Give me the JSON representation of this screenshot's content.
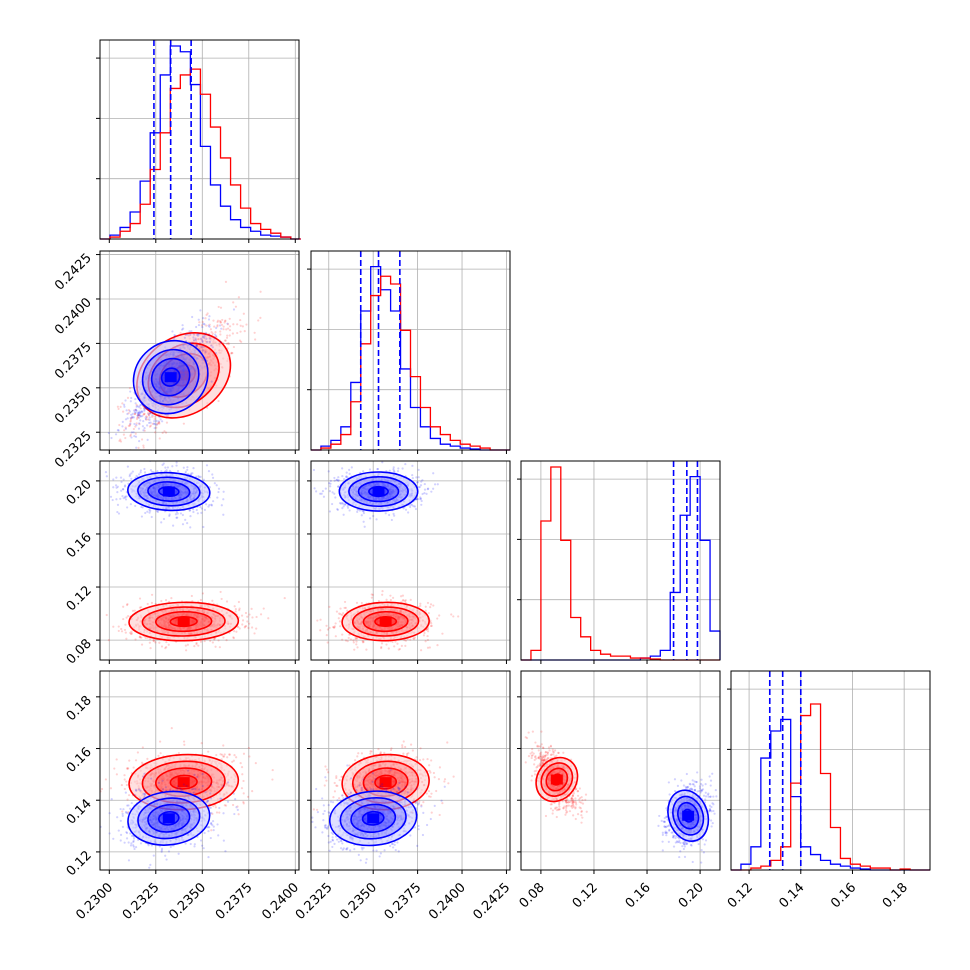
{
  "chart_data": {
    "type": "corner",
    "description_series": [
      {
        "name": "",
        "color": "#0000ff"
      },
      {
        "name": "",
        "color": "#ff0000"
      }
    ],
    "colors": {
      "blue": "#0000ff",
      "red": "#ff0000"
    },
    "grid": true,
    "parameters": [
      {
        "index": 0,
        "range": [
          0.2295,
          0.2402
        ],
        "ticks": [
          "0.2300",
          "0.2325",
          "0.2350",
          "0.2375",
          "0.2400"
        ],
        "tick_values": [
          0.23,
          0.2325,
          0.235,
          0.2375,
          0.24
        ],
        "quantiles": [
          0.2324,
          0.2333,
          0.2344
        ],
        "blue_hist": {
          "edges_start": 0.2295,
          "edges_step": 0.00054,
          "values": [
            0.0,
            0.02,
            0.06,
            0.14,
            0.3,
            0.55,
            0.85,
            1.0,
            0.97,
            0.8,
            0.48,
            0.28,
            0.17,
            0.1,
            0.06,
            0.04,
            0.02,
            0.015,
            0.01,
            0.0
          ]
        },
        "red_hist": {
          "edges_start": 0.2295,
          "edges_step": 0.00054,
          "values": [
            0.0,
            0.01,
            0.04,
            0.08,
            0.18,
            0.36,
            0.55,
            0.78,
            0.85,
            0.88,
            0.75,
            0.58,
            0.42,
            0.28,
            0.16,
            0.08,
            0.05,
            0.03,
            0.01,
            0.0
          ]
        }
      },
      {
        "index": 1,
        "range": [
          0.2315,
          0.2427
        ],
        "ticks": [
          "0.2325",
          "0.2350",
          "0.2375",
          "0.2400",
          "0.2425"
        ],
        "tick_values": [
          0.2325,
          0.235,
          0.2375,
          0.24,
          0.2425
        ],
        "quantiles": [
          0.2343,
          0.2353,
          0.2365
        ],
        "blue_hist": {
          "edges_start": 0.2315,
          "edges_step": 0.00056,
          "values": [
            0.0,
            0.02,
            0.05,
            0.12,
            0.35,
            0.72,
            0.95,
            0.83,
            0.72,
            0.42,
            0.22,
            0.12,
            0.06,
            0.03,
            0.02,
            0.01,
            0.005,
            0.0,
            0.0,
            0.0
          ]
        },
        "red_hist": {
          "edges_start": 0.2315,
          "edges_step": 0.00056,
          "values": [
            0.0,
            0.01,
            0.03,
            0.08,
            0.25,
            0.55,
            0.8,
            0.9,
            0.86,
            0.62,
            0.38,
            0.22,
            0.12,
            0.08,
            0.05,
            0.03,
            0.02,
            0.01,
            0.0,
            0.0
          ]
        }
      },
      {
        "index": 2,
        "range": [
          0.065,
          0.215
        ],
        "ticks": [
          "0.08",
          "0.12",
          "0.16",
          "0.20"
        ],
        "tick_values": [
          0.08,
          0.12,
          0.16,
          0.2
        ],
        "quantiles": [
          0.18,
          0.19,
          0.198
        ],
        "blue_hist": {
          "edges_start": 0.065,
          "edges_step": 0.0075,
          "values": [
            0,
            0,
            0,
            0,
            0,
            0,
            0,
            0,
            0,
            0,
            0,
            0,
            0.01,
            0.02,
            0.05,
            0.35,
            0.75,
            0.95,
            0.62,
            0.15
          ]
        },
        "red_hist": {
          "edges_start": 0.065,
          "edges_step": 0.0075,
          "values": [
            0.0,
            0.05,
            0.72,
            1.0,
            0.62,
            0.22,
            0.12,
            0.05,
            0.03,
            0.02,
            0.02,
            0.01,
            0.01,
            0.005,
            0,
            0,
            0,
            0,
            0,
            0
          ]
        }
      },
      {
        "index": 3,
        "range": [
          0.113,
          0.19
        ],
        "ticks": [
          "0.12",
          "0.14",
          "0.16",
          "0.18"
        ],
        "tick_values": [
          0.12,
          0.14,
          0.16,
          0.18
        ],
        "quantiles": [
          0.128,
          0.133,
          0.14
        ],
        "blue_hist": {
          "edges_start": 0.113,
          "edges_step": 0.00385,
          "values": [
            0.0,
            0.03,
            0.12,
            0.58,
            0.72,
            0.78,
            0.38,
            0.12,
            0.08,
            0.05,
            0.03,
            0.02,
            0.01,
            0.005,
            0,
            0,
            0,
            0,
            0,
            0
          ]
        },
        "red_hist": {
          "edges_start": 0.113,
          "edges_step": 0.00385,
          "values": [
            0.0,
            0.0,
            0.01,
            0.02,
            0.05,
            0.12,
            0.45,
            0.8,
            0.86,
            0.5,
            0.22,
            0.06,
            0.03,
            0.02,
            0.01,
            0.01,
            0.0,
            0.005,
            0,
            0
          ]
        }
      }
    ],
    "two_d": [
      {
        "row": 1,
        "col": 0,
        "blue": {
          "mean": [
            0.2333,
            0.2356
          ],
          "sd": [
            0.00085,
            0.0011
          ],
          "corr": 0.78
        },
        "red": {
          "mean": [
            0.234,
            0.2357
          ],
          "sd": [
            0.0011,
            0.0012
          ],
          "corr": 0.75
        }
      },
      {
        "row": 2,
        "col": 0,
        "blue": {
          "mean": [
            0.2332,
            0.192
          ],
          "sd": [
            0.0009,
            0.006
          ],
          "corr": -0.1
        },
        "red": {
          "mean": [
            0.234,
            0.094
          ],
          "sd": [
            0.0012,
            0.006
          ],
          "corr": 0.05
        }
      },
      {
        "row": 2,
        "col": 1,
        "blue": {
          "mean": [
            0.2353,
            0.192
          ],
          "sd": [
            0.0009,
            0.006
          ],
          "corr": 0.0
        },
        "red": {
          "mean": [
            0.2357,
            0.094
          ],
          "sd": [
            0.001,
            0.006
          ],
          "corr": 0.05
        }
      },
      {
        "row": 3,
        "col": 0,
        "blue": {
          "mean": [
            0.2332,
            0.133
          ],
          "sd": [
            0.0009,
            0.0045
          ],
          "corr": 0.2
        },
        "red": {
          "mean": [
            0.234,
            0.147
          ],
          "sd": [
            0.0012,
            0.0045
          ],
          "corr": 0.1
        }
      },
      {
        "row": 3,
        "col": 1,
        "blue": {
          "mean": [
            0.235,
            0.133
          ],
          "sd": [
            0.001,
            0.0045
          ],
          "corr": 0.15
        },
        "red": {
          "mean": [
            0.2357,
            0.147
          ],
          "sd": [
            0.001,
            0.0045
          ],
          "corr": 0.1
        }
      },
      {
        "row": 3,
        "col": 2,
        "blue": {
          "mean": [
            0.191,
            0.134
          ],
          "sd": [
            0.006,
            0.0045
          ],
          "corr": 0.25
        },
        "red": {
          "mean": [
            0.092,
            0.148
          ],
          "sd": [
            0.006,
            0.0045
          ],
          "corr": -0.55
        }
      }
    ]
  }
}
